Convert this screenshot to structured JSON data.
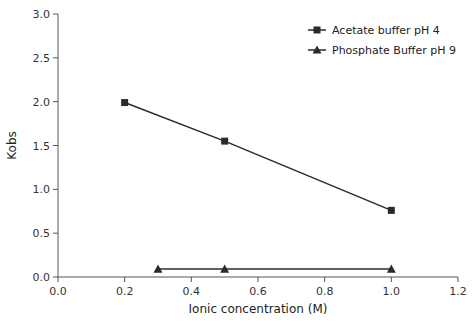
{
  "chart_data": {
    "type": "line",
    "xlabel": "Ionic concentration (M)",
    "ylabel": "Kobs",
    "series": [
      {
        "name": "Acetate buffer pH 4",
        "color": "#2b2b2b",
        "marker": "square",
        "x": [
          0.2,
          0.5,
          1.0
        ],
        "values": [
          1.99,
          1.55,
          0.76
        ]
      },
      {
        "name": "Phosphate Buffer pH 9",
        "color": "#2b2b2b",
        "marker": "triangle",
        "x": [
          0.3,
          0.5,
          1.0
        ],
        "values": [
          0.09,
          0.09,
          0.09
        ]
      }
    ],
    "xlim": [
      0.0,
      1.2
    ],
    "ylim": [
      0.0,
      3.0
    ],
    "xticks": [
      {
        "value": 0,
        "label": "0.0"
      },
      0.2,
      0.4,
      0.6,
      0.8,
      {
        "value": 1,
        "label": "1.0"
      },
      1.2
    ],
    "yticks": [
      {
        "value": 0,
        "label": "0.0"
      },
      0.5,
      {
        "value": 1,
        "label": "1.0"
      },
      1.5,
      {
        "value": 2,
        "label": "2.0"
      },
      2.5,
      {
        "value": 3,
        "label": "3.0"
      }
    ],
    "legend": "upper right",
    "grid": false
  }
}
